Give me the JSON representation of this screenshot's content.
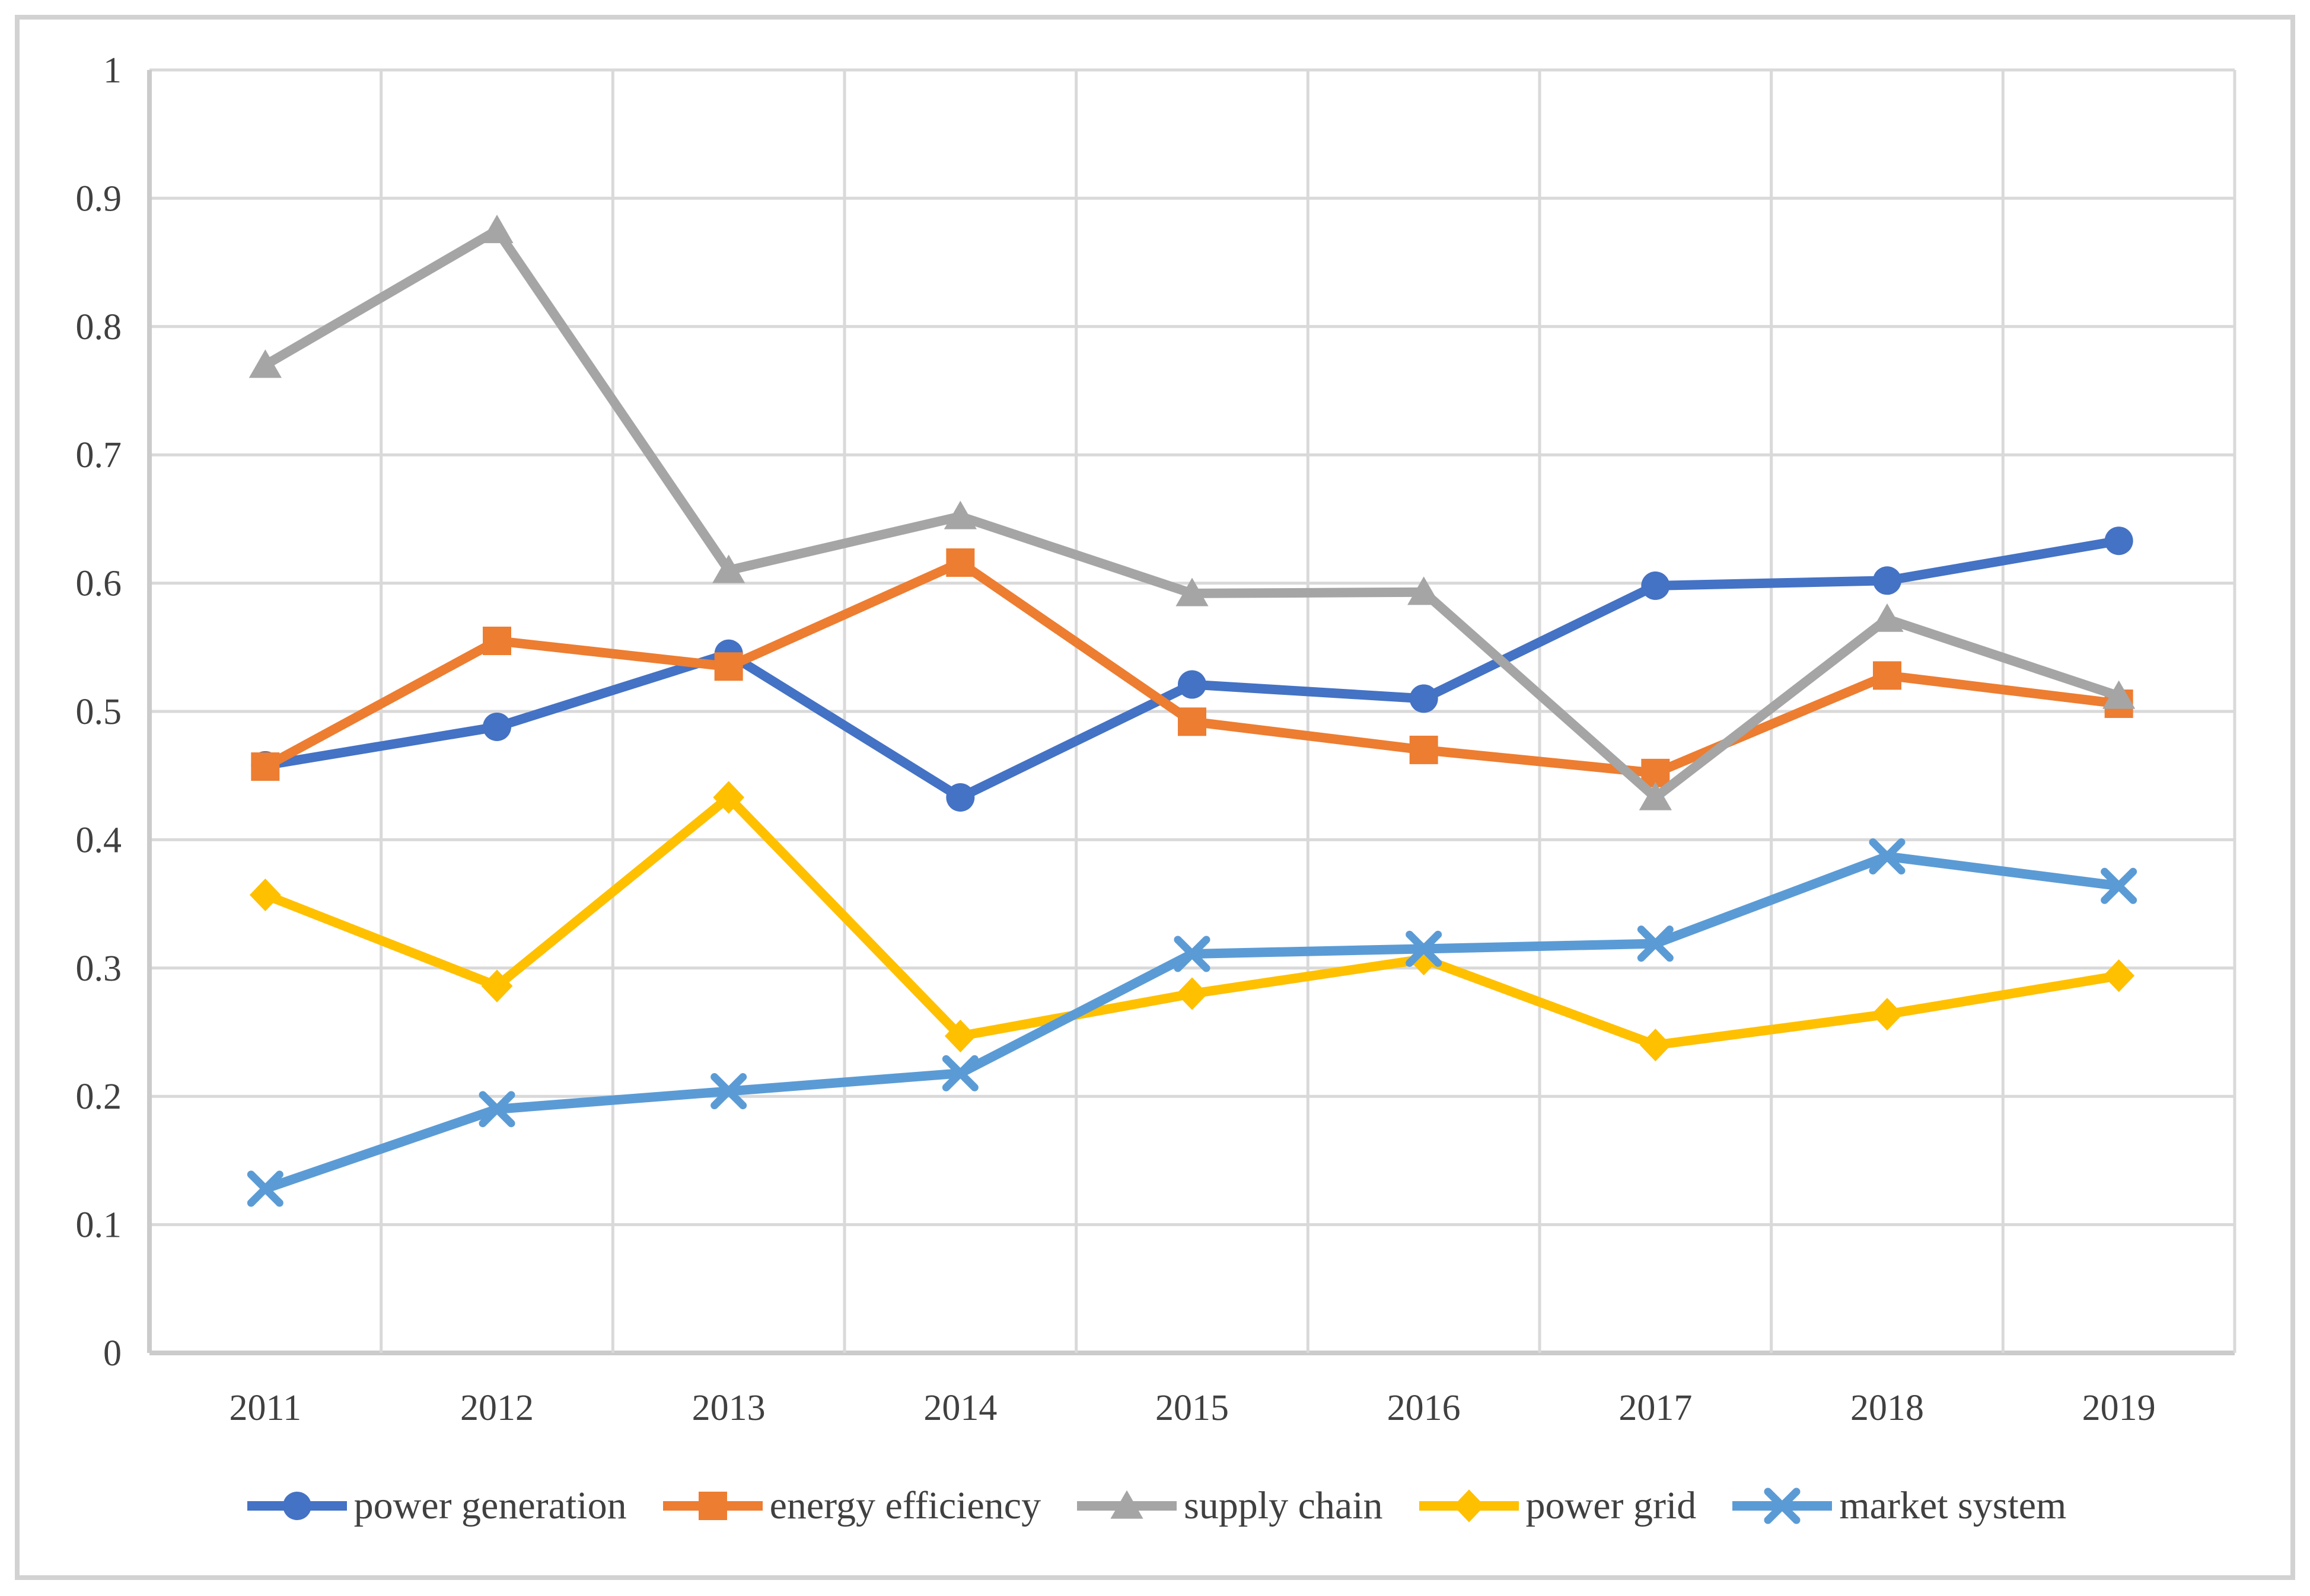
{
  "chart_data": {
    "type": "line",
    "categories": [
      "2011",
      "2012",
      "2013",
      "2014",
      "2015",
      "2016",
      "2017",
      "2018",
      "2019"
    ],
    "series": [
      {
        "name": "power generation",
        "color": "#4472C4",
        "marker": "circle",
        "values": [
          0.458,
          0.488,
          0.545,
          0.433,
          0.521,
          0.51,
          0.598,
          0.602,
          0.633
        ]
      },
      {
        "name": "energy efficiency",
        "color": "#ED7D31",
        "marker": "square",
        "values": [
          0.457,
          0.555,
          0.535,
          0.616,
          0.492,
          0.47,
          0.452,
          0.528,
          0.506
        ]
      },
      {
        "name": "supply chain",
        "color": "#A5A5A5",
        "marker": "triangle",
        "values": [
          0.77,
          0.875,
          0.61,
          0.652,
          0.592,
          0.593,
          0.433,
          0.572,
          0.512
        ]
      },
      {
        "name": "power grid",
        "color": "#FFC000",
        "marker": "diamond",
        "values": [
          0.357,
          0.286,
          0.433,
          0.247,
          0.28,
          0.307,
          0.24,
          0.264,
          0.294
        ]
      },
      {
        "name": "market system",
        "color": "#5B9BD5",
        "marker": "x",
        "values": [
          0.128,
          0.19,
          0.204,
          0.218,
          0.311,
          0.315,
          0.319,
          0.387,
          0.364
        ]
      }
    ],
    "xlabel": "",
    "ylabel": "",
    "ylim": [
      0,
      1
    ],
    "yticks": [
      {
        "value": 0,
        "label": "0"
      },
      {
        "value": 0.1,
        "label": "0.1"
      },
      {
        "value": 0.2,
        "label": "0.2"
      },
      {
        "value": 0.3,
        "label": "0.3"
      },
      {
        "value": 0.4,
        "label": "0.4"
      },
      {
        "value": 0.5,
        "label": "0.5"
      },
      {
        "value": 0.6,
        "label": "0.6"
      },
      {
        "value": 0.7,
        "label": "0.7"
      },
      {
        "value": 0.8,
        "label": "0.8"
      },
      {
        "value": 0.9,
        "label": "0.9"
      },
      {
        "value": 1,
        "label": "1"
      }
    ],
    "grid": true,
    "legend_position": "bottom"
  },
  "styles": {
    "grid_color": "#D9D9D9",
    "axis_color": "#CBCBCB",
    "tick_text_color": "#404040",
    "frame_border_color": "#D2D2D2",
    "background": "#FFFFFF"
  }
}
